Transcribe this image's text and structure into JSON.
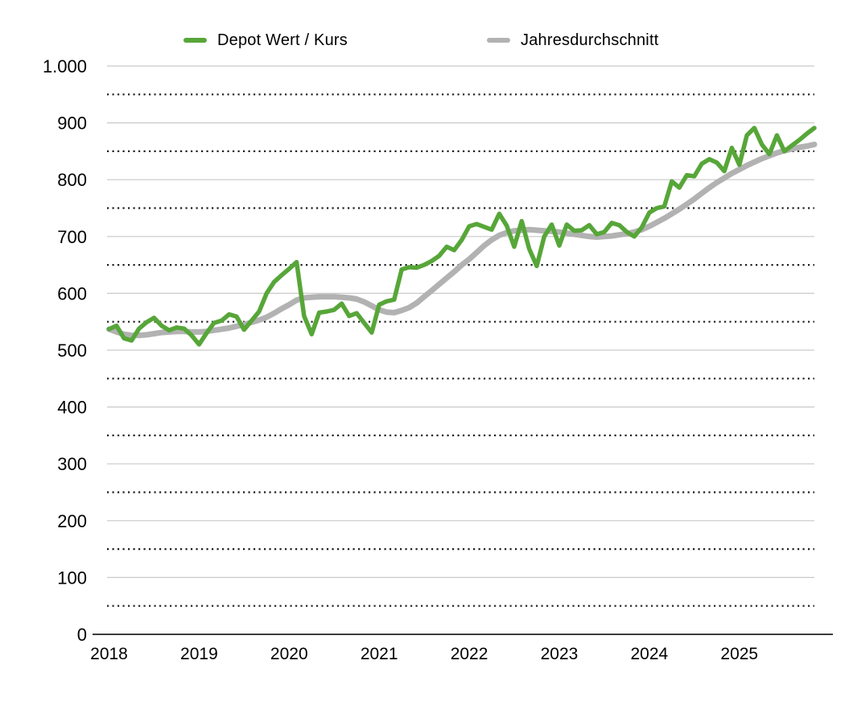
{
  "legend": {
    "depot_label": "Depot Wert / Kurs",
    "average_label": "Jahresdurchschnitt"
  },
  "colors": {
    "depot_green": "#57A639",
    "average_gray": "#B2B2B2",
    "solid_grid": "#C9C9C9",
    "dotted_grid": "#1F1F1F",
    "axis": "#3C3C3C",
    "label_text": "#000000",
    "background": "#FFFFFF"
  },
  "chart_data": {
    "type": "line",
    "title": "",
    "x_tick_labels": [
      "2018",
      "2019",
      "2020",
      "2021",
      "2022",
      "2023",
      "2024",
      "2025"
    ],
    "y_tick_labels": [
      "1.000",
      "900",
      "800",
      "700",
      "600",
      "500",
      "400",
      "300",
      "200",
      "100",
      "0"
    ],
    "ylim": [
      0,
      1000
    ],
    "grid": {
      "solid_every": 100,
      "dotted_every": 50
    },
    "months_per_year": 12,
    "x_range_months": "Jan 2018 - Nov 2025",
    "legend_position": "top",
    "series": [
      {
        "name": "Depot Wert / Kurs",
        "color": "#57A639",
        "values": [
          537,
          543,
          521,
          517,
          538,
          549,
          557,
          543,
          535,
          540,
          538,
          526,
          510,
          530,
          548,
          552,
          563,
          559,
          536,
          552,
          568,
          600,
          620,
          632,
          643,
          655,
          560,
          528,
          566,
          568,
          571,
          582,
          560,
          565,
          548,
          531,
          580,
          586,
          589,
          642,
          646,
          645,
          650,
          657,
          666,
          682,
          676,
          694,
          718,
          722,
          717,
          712,
          740,
          719,
          682,
          727,
          678,
          648,
          700,
          721,
          684,
          721,
          710,
          711,
          720,
          704,
          708,
          724,
          720,
          708,
          700,
          716,
          742,
          750,
          753,
          797,
          786,
          808,
          806,
          828,
          836,
          830,
          815,
          856,
          826,
          878,
          891,
          862,
          845,
          878,
          850,
          860,
          870,
          881,
          891
        ]
      },
      {
        "name": "Jahresdurchschnitt",
        "color": "#B2B2B2",
        "values": [
          537,
          532,
          528,
          526,
          526,
          527,
          529,
          531,
          532,
          533,
          533,
          532,
          532,
          533,
          535,
          537,
          539,
          542,
          545,
          549,
          553,
          558,
          565,
          573,
          580,
          588,
          592,
          593,
          594,
          594,
          594,
          593,
          592,
          590,
          585,
          578,
          571,
          567,
          566,
          570,
          575,
          583,
          594,
          605,
          616,
          627,
          638,
          650,
          660,
          672,
          684,
          694,
          702,
          707,
          710,
          711,
          712,
          711,
          710,
          709,
          708,
          706,
          704,
          702,
          700,
          699,
          700,
          701,
          703,
          705,
          708,
          712,
          718,
          725,
          732,
          740,
          748,
          757,
          766,
          776,
          786,
          795,
          803,
          811,
          818,
          825,
          831,
          837,
          842,
          847,
          851,
          854,
          857,
          859,
          862
        ]
      }
    ]
  }
}
